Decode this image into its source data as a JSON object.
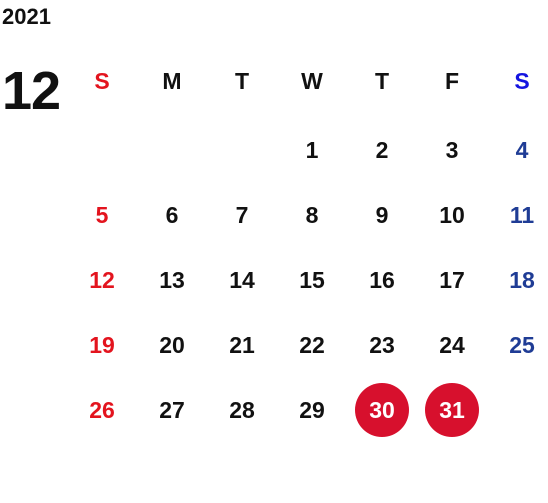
{
  "year": "2021",
  "month": "12",
  "weekdays": [
    "S",
    "M",
    "T",
    "W",
    "T",
    "F",
    "S"
  ],
  "weeks": [
    [
      null,
      null,
      null,
      1,
      2,
      3,
      4
    ],
    [
      5,
      6,
      7,
      8,
      9,
      10,
      11
    ],
    [
      12,
      13,
      14,
      15,
      16,
      17,
      18
    ],
    [
      19,
      20,
      21,
      22,
      23,
      24,
      25
    ],
    [
      26,
      27,
      28,
      29,
      30,
      31,
      null
    ]
  ],
  "highlighted_days": [
    30,
    31
  ]
}
